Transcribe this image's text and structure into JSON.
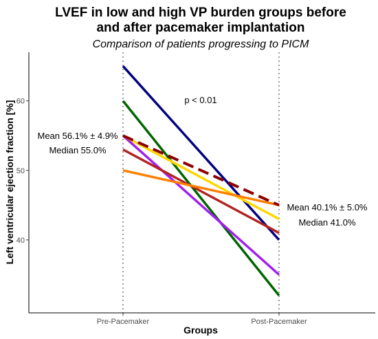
{
  "chart_data": {
    "type": "line",
    "title_line1": "LVEF in low and high VP burden groups before",
    "title_line2": "and after pacemaker implantation",
    "subtitle": "Comparison of patients progressing to PICM",
    "xlabel": "Groups",
    "ylabel": "Left ventricular ejection fraction [%]",
    "categories": [
      "Pre-Pacemaker",
      "Post-Pacemaker"
    ],
    "yticks": [
      40,
      50,
      60
    ],
    "ylim": [
      29.5,
      67
    ],
    "grid": false,
    "series": [
      {
        "color": "#000080",
        "values": [
          65,
          40
        ],
        "style": "solid"
      },
      {
        "color": "#006400",
        "values": [
          60,
          32
        ],
        "style": "solid"
      },
      {
        "color": "#A020F0",
        "values": [
          55,
          35
        ],
        "style": "solid"
      },
      {
        "color": "#FFD700",
        "values": [
          55,
          43
        ],
        "style": "solid"
      },
      {
        "color": "#B22222",
        "values": [
          53,
          41
        ],
        "style": "solid"
      },
      {
        "color": "#FF7F00",
        "values": [
          50,
          45
        ],
        "style": "solid"
      },
      {
        "color": "#8B0000",
        "values": [
          55,
          45
        ],
        "style": "dashed"
      }
    ],
    "annotations": {
      "pvalue": "p < 0.01",
      "pre_mean": "Mean 56.1% ± 4.9%",
      "pre_median": "Median 55.0%",
      "post_mean": "Mean 40.1% ± 5.0%",
      "post_median": "Median 41.0%"
    }
  }
}
